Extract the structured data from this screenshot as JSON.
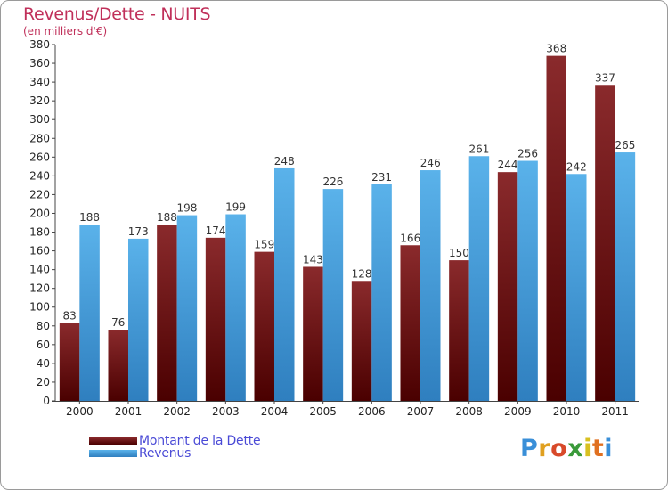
{
  "chart_data": {
    "type": "bar",
    "title": "Revenus/Dette - NUITS",
    "subtitle": "(en milliers d'€)",
    "categories": [
      "2000",
      "2001",
      "2002",
      "2003",
      "2004",
      "2005",
      "2006",
      "2007",
      "2008",
      "2009",
      "2010",
      "2011"
    ],
    "series": [
      {
        "name": "Montant de la Dette",
        "color": "#7a1a1a",
        "values": [
          83,
          76,
          188,
          174,
          159,
          143,
          128,
          166,
          150,
          244,
          368,
          337
        ]
      },
      {
        "name": "Revenus",
        "color": "#4aa3e0",
        "values": [
          188,
          173,
          198,
          199,
          248,
          226,
          231,
          246,
          261,
          256,
          242,
          265
        ]
      }
    ],
    "ylim": [
      0,
      380
    ],
    "ytick_step": 20,
    "grid": false,
    "legend_position": "bottom-left"
  },
  "brand": {
    "logo_text": "Proxiti"
  }
}
